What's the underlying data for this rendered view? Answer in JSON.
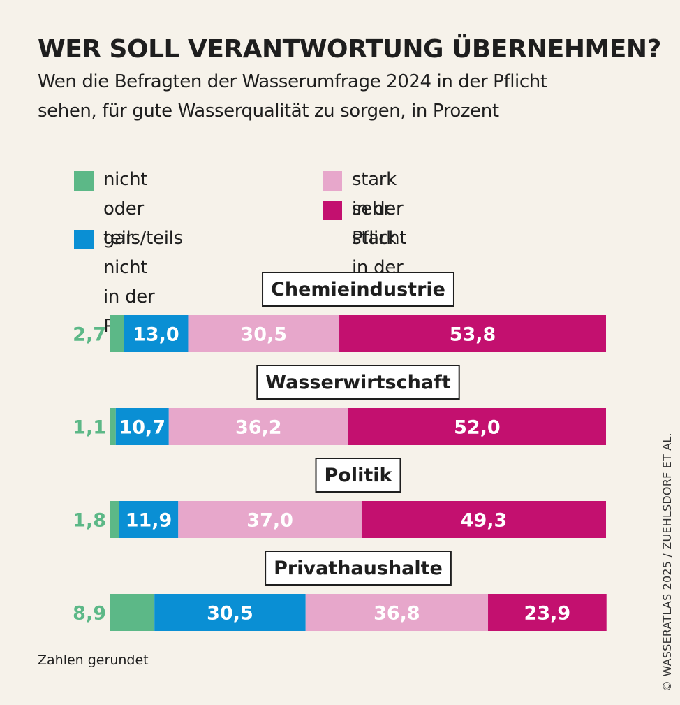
{
  "chart_data": {
    "type": "bar",
    "stacked": true,
    "orientation": "horizontal",
    "title": "WER SOLL VERANTWORTUNG ÜBERNEHMEN?",
    "subtitle_lines": [
      "Wen die Befragten der Wasserumfrage 2024 in der Pflicht",
      "sehen, für gute Wasserqualität zu sorgen, in Prozent"
    ],
    "categories": [
      "Chemieindustrie",
      "Wasserwirtschaft",
      "Politik",
      "Privathaushalte"
    ],
    "series": [
      {
        "name": "nicht oder gar nicht in der Pflicht",
        "legend_lines": [
          "nicht oder gar nicht",
          "in der Pflicht"
        ],
        "color": "#5cb887",
        "values": [
          2.7,
          1.1,
          1.8,
          8.9
        ],
        "labels": [
          "2,7",
          "1,1",
          "1,8",
          "8,9"
        ]
      },
      {
        "name": "teils/teils",
        "legend_lines": [
          "teils/teils"
        ],
        "color": "#0a8fd4",
        "values": [
          13.0,
          10.7,
          11.9,
          30.5
        ],
        "labels": [
          "13,0",
          "10,7",
          "11,9",
          "30,5"
        ]
      },
      {
        "name": "stark in der Pflicht",
        "legend_lines": [
          "stark in der Pflicht"
        ],
        "color": "#e7a7cb",
        "values": [
          30.5,
          36.2,
          37.0,
          36.8
        ],
        "labels": [
          "30,5",
          "36,2",
          "37,0",
          "36,8"
        ]
      },
      {
        "name": "sehr stark in der Pflicht",
        "legend_lines": [
          "sehr stark in der Pflicht"
        ],
        "color": "#c3106f",
        "values": [
          53.8,
          52.0,
          49.3,
          23.9
        ],
        "labels": [
          "53,8",
          "52,0",
          "49,3",
          "23,9"
        ]
      }
    ],
    "xlim": [
      0,
      100
    ],
    "note": "Zahlen gerundet"
  },
  "credit": "© WASSERATLAS 2025 / ZUEHLSDORF ET AL."
}
